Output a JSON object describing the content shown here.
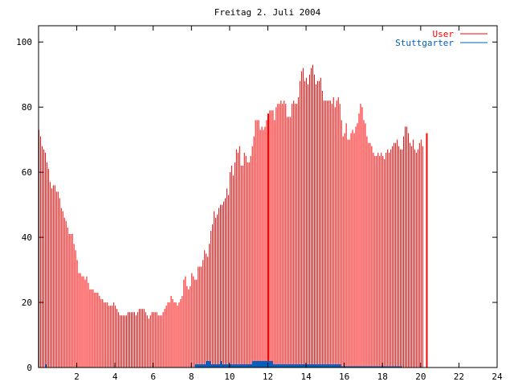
{
  "chart_data": {
    "type": "bar",
    "title": "Freitag 2. Juli 2004",
    "xlabel": "",
    "ylabel": "",
    "xlim": [
      0,
      24
    ],
    "ylim": [
      0,
      105
    ],
    "x_ticks": [
      2,
      4,
      6,
      8,
      10,
      12,
      14,
      16,
      18,
      20,
      22,
      24
    ],
    "x_tick_labels": [
      "2",
      "4",
      "6",
      "8",
      "10",
      "12",
      "14",
      "16",
      "18",
      "20",
      "22",
      "24"
    ],
    "y_ticks": [
      0,
      20,
      40,
      60,
      80,
      100
    ],
    "y_tick_labels": [
      "0",
      "20",
      "40",
      "60",
      "80",
      "100"
    ],
    "grid": false,
    "legend_position": "top-right",
    "sample_interval_hours": 0.08333,
    "series": [
      {
        "name": "User",
        "color": "#ff0000",
        "values": [
          73,
          71,
          68,
          67,
          66,
          63,
          61,
          57,
          55,
          56,
          56,
          54,
          54,
          52,
          49,
          48,
          46,
          45,
          43,
          41,
          41,
          41,
          38,
          36,
          33,
          29,
          29,
          28,
          28,
          27,
          28,
          26,
          24,
          24,
          24,
          23,
          23,
          23,
          22,
          21,
          21,
          20,
          20,
          20,
          19,
          19,
          19,
          20,
          19,
          18,
          17,
          16,
          16,
          16,
          16,
          16,
          17,
          17,
          17,
          17,
          17,
          16,
          17,
          18,
          18,
          18,
          18,
          17,
          16,
          15,
          16,
          17,
          17,
          17,
          17,
          16,
          16,
          16,
          17,
          18,
          19,
          20,
          20,
          22,
          21,
          20,
          20,
          19,
          20,
          21,
          22,
          27,
          28,
          25,
          24,
          25,
          29,
          28,
          27,
          27,
          31,
          31,
          31,
          33,
          36,
          35,
          34,
          38,
          42,
          44,
          48,
          46,
          47,
          49,
          50,
          50,
          51,
          52,
          55,
          53,
          60,
          62,
          59,
          63,
          67,
          66,
          68,
          62,
          62,
          66,
          65,
          63,
          63,
          65,
          68,
          71,
          76,
          76,
          76,
          73,
          74,
          73,
          74,
          76,
          77,
          79,
          79,
          79,
          76,
          80,
          81,
          81,
          82,
          81,
          82,
          81,
          77,
          77,
          77,
          81,
          82,
          81,
          81,
          83,
          88,
          91,
          92,
          88,
          89,
          87,
          90,
          92,
          93,
          90,
          87,
          88,
          88,
          89,
          85,
          82,
          82,
          82,
          82,
          82,
          81,
          83,
          80,
          82,
          83,
          81,
          76,
          71,
          72,
          75,
          70,
          70,
          72,
          73,
          72,
          74,
          75,
          78,
          81,
          80,
          76,
          75,
          71,
          69,
          69,
          68,
          66,
          65,
          65,
          66,
          65,
          66,
          65,
          64,
          66,
          67,
          66,
          67,
          68,
          69,
          69,
          70,
          68,
          67,
          67,
          71,
          74,
          74,
          72,
          69,
          68,
          70,
          67,
          66,
          67,
          69,
          70,
          68
        ]
      },
      {
        "name": "Stuttgarter",
        "color": "#0060c0",
        "values": [
          0,
          0,
          0,
          0,
          1,
          0,
          0,
          0,
          0,
          0,
          0,
          0,
          0,
          0,
          0,
          0,
          0,
          0,
          0,
          0,
          0,
          0,
          0,
          0,
          0,
          0,
          0,
          0,
          0,
          0,
          0,
          0,
          0,
          0,
          0,
          0,
          0,
          0,
          0,
          0,
          0,
          0,
          0,
          0,
          0,
          0,
          0,
          0,
          0,
          0,
          0,
          0,
          0,
          0,
          0,
          0,
          0,
          0,
          0,
          0,
          0,
          0,
          0,
          0,
          0,
          0,
          0,
          0,
          0,
          0,
          0,
          0,
          0,
          0,
          0,
          0,
          0,
          0,
          0,
          0,
          0,
          0,
          0,
          0,
          0,
          0,
          0,
          0,
          0,
          0,
          0,
          0,
          0,
          0,
          0,
          0,
          0,
          0,
          1,
          1,
          1,
          1,
          1,
          1,
          1,
          2,
          2,
          2,
          1,
          1,
          1,
          1,
          1,
          1,
          2,
          1,
          1,
          1,
          1,
          1,
          1,
          1,
          1,
          1,
          1,
          1,
          1,
          1,
          1,
          1,
          1,
          1,
          1,
          1,
          2,
          2,
          2,
          2,
          2,
          2,
          2,
          2,
          2,
          2,
          2,
          2,
          2,
          1,
          1,
          1,
          1,
          1,
          1,
          1,
          1,
          1,
          1,
          1,
          1,
          1,
          1,
          1,
          1,
          1,
          1,
          1,
          1,
          1,
          1,
          1,
          1,
          1,
          1,
          1,
          1,
          1,
          1,
          1,
          1,
          1,
          1,
          1,
          1,
          1,
          1,
          1,
          1,
          1,
          1,
          1,
          0,
          0,
          0,
          0,
          0,
          0,
          0,
          0,
          0,
          0,
          0,
          0,
          0,
          0,
          0,
          0,
          0,
          0,
          0,
          0,
          0,
          0,
          0,
          0,
          0,
          0,
          0,
          0,
          0,
          0,
          0,
          0,
          0,
          0,
          0,
          0,
          0,
          0,
          0,
          0,
          0,
          0,
          0,
          0,
          0,
          0,
          0,
          0,
          0,
          0,
          0,
          0,
          0,
          0,
          0,
          0,
          0,
          0,
          0,
          0,
          0,
          0,
          0,
          0,
          0,
          0
        ]
      }
    ],
    "spikes": [
      {
        "series": "User",
        "x": 12.0,
        "value": 78
      },
      {
        "series": "User",
        "x": 20.3,
        "value": 72
      }
    ]
  }
}
